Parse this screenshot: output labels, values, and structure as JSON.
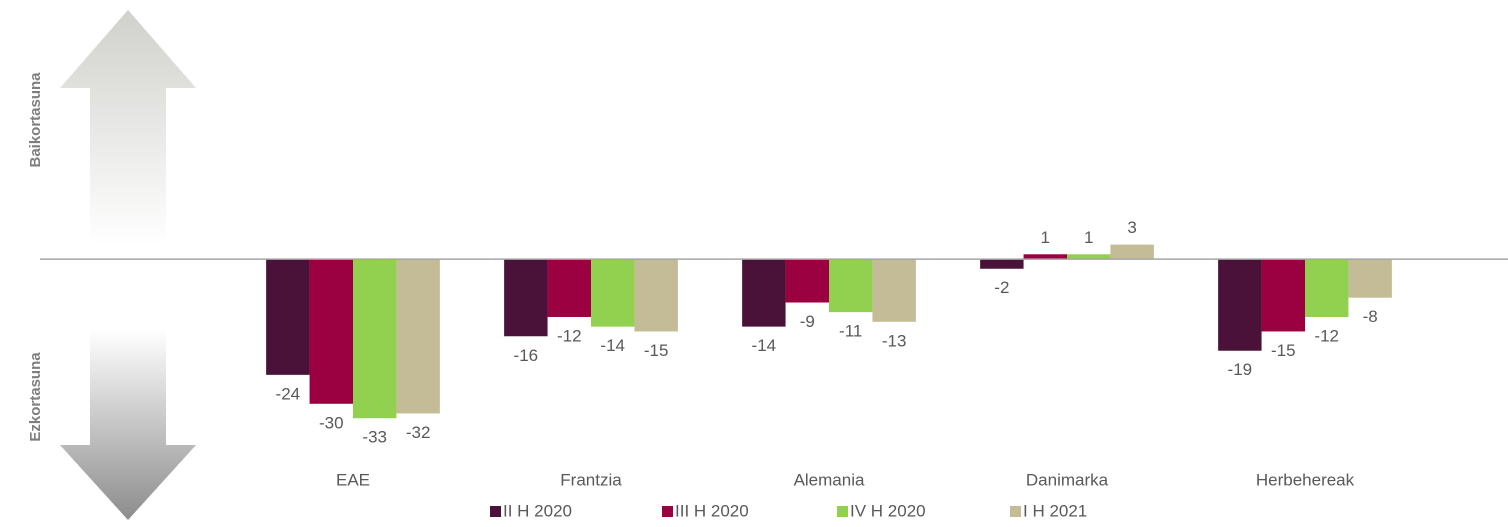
{
  "chart_data": {
    "type": "bar",
    "y_label_top": "Baikortasuna",
    "y_label_bottom": "Ezkortasuna",
    "categories": [
      "EAE",
      "Frantzia",
      "Alemania",
      "Danimarka",
      "Herbehereak"
    ],
    "series": [
      {
        "name": "II H 2020",
        "color": "#4a1238",
        "values": [
          -24,
          -16,
          -14,
          -2,
          -19
        ]
      },
      {
        "name": "III H 2020",
        "color": "#9b0040",
        "values": [
          -30,
          -12,
          -9,
          1,
          -15
        ]
      },
      {
        "name": "IV H 2020",
        "color": "#92d050",
        "values": [
          -33,
          -14,
          -11,
          1,
          -12
        ]
      },
      {
        "name": "I H 2021",
        "color": "#c4bc96",
        "values": [
          -32,
          -15,
          -13,
          3,
          -8
        ]
      }
    ],
    "ylim": [
      -40,
      50
    ],
    "legend": "bottom"
  }
}
